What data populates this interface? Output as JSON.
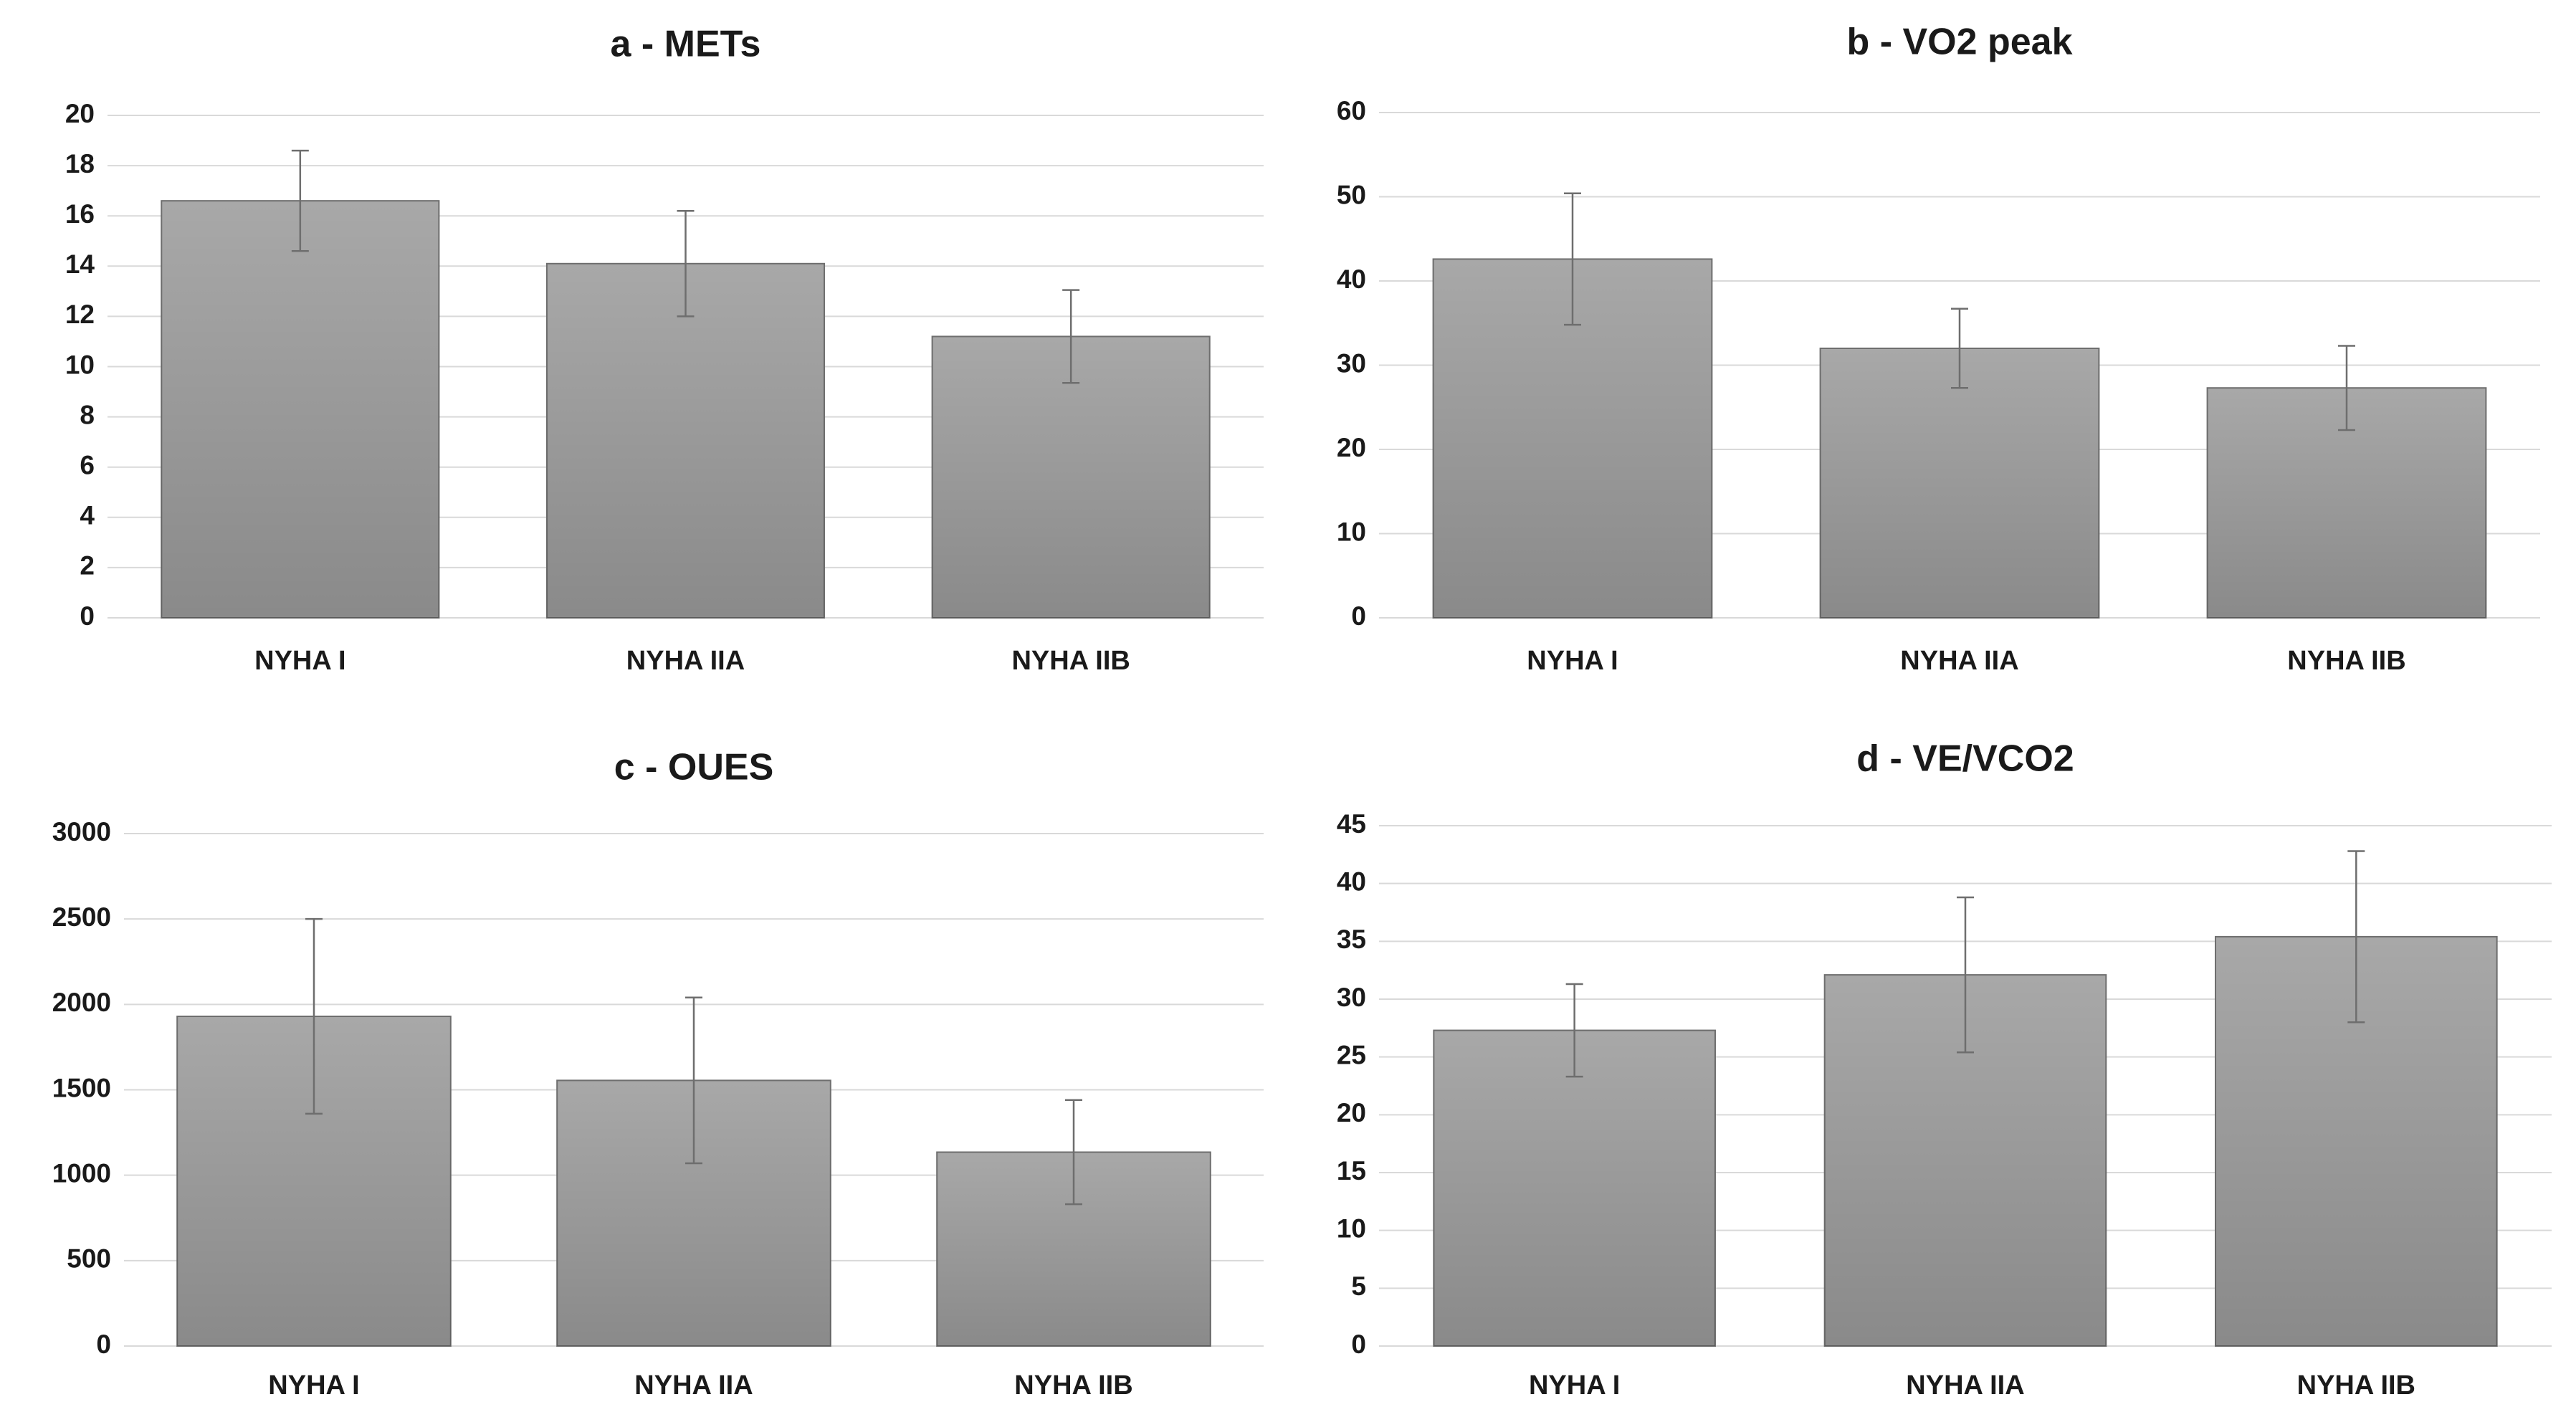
{
  "chart_data": [
    {
      "type": "bar",
      "title": "a - METs",
      "categories": [
        "NYHA I",
        "NYHA IIA",
        "NYHA IIB"
      ],
      "values": [
        16.6,
        14.1,
        11.2
      ],
      "errors": [
        2.0,
        2.1,
        1.85
      ],
      "color": "#a8a8a8",
      "ylim": [
        0,
        20
      ],
      "yticks": [
        0,
        2,
        4,
        6,
        8,
        10,
        12,
        14,
        16,
        18,
        20
      ],
      "grid": true
    },
    {
      "type": "bar",
      "title": "b - VO2 peak",
      "categories": [
        "NYHA I",
        "NYHA IIA",
        "NYHA IIB"
      ],
      "values": [
        42.6,
        32.0,
        27.3
      ],
      "errors": [
        7.8,
        4.7,
        5.0
      ],
      "color": "#a8a8a8",
      "ylim": [
        0,
        60
      ],
      "yticks": [
        0,
        10,
        20,
        30,
        40,
        50,
        60
      ],
      "grid": true
    },
    {
      "type": "bar",
      "title": "c - OUES",
      "categories": [
        "NYHA I",
        "NYHA IIA",
        "NYHA IIB"
      ],
      "values": [
        1930,
        1555,
        1135
      ],
      "errors": [
        570,
        485,
        305
      ],
      "color": "#a8a8a8",
      "ylim": [
        0,
        3000
      ],
      "yticks": [
        0,
        500,
        1000,
        1500,
        2000,
        2500,
        3000
      ],
      "grid": true
    },
    {
      "type": "bar",
      "title": "d - VE/VCO2",
      "categories": [
        "NYHA I",
        "NYHA IIA",
        "NYHA IIB"
      ],
      "values": [
        27.3,
        32.1,
        35.4
      ],
      "errors": [
        4.0,
        6.7,
        7.4
      ],
      "color": "#a8a8a8",
      "ylim": [
        0,
        45
      ],
      "yticks": [
        0,
        5,
        10,
        15,
        20,
        25,
        30,
        35,
        40,
        45
      ],
      "grid": true
    }
  ]
}
